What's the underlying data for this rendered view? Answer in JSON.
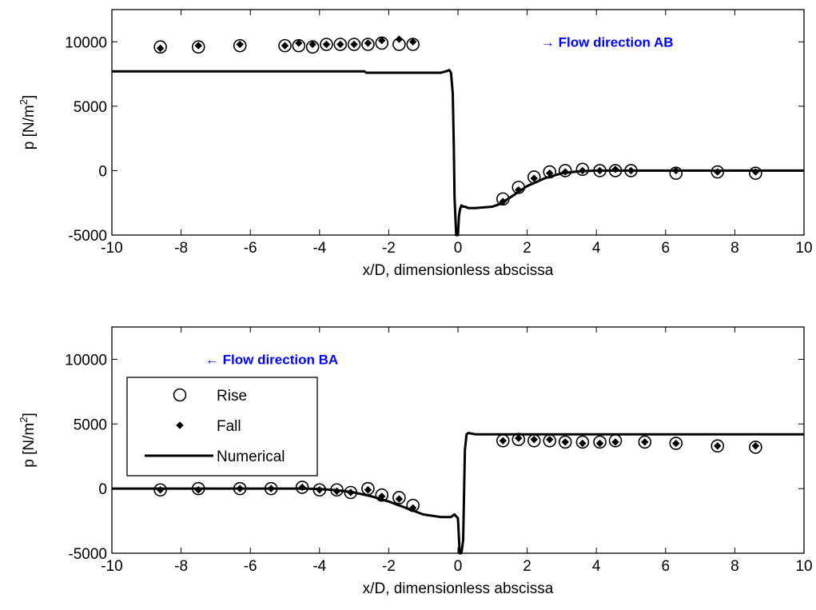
{
  "chart_data": [
    {
      "type": "scatter",
      "xlabel": "x/D, dimensionless abscissa",
      "ylabel": "p [N/m",
      "ylabel_sup": "2",
      "ylabel_close": "]",
      "xlim": [
        -10,
        10
      ],
      "ylim": [
        -5000,
        12500
      ],
      "xticks": [
        -10,
        -8,
        -6,
        -4,
        -2,
        0,
        2,
        4,
        6,
        8,
        10
      ],
      "yticks": [
        -5000,
        0,
        5000,
        10000
      ],
      "annotation": {
        "text": "→ Flow direction AB",
        "x": 2.4,
        "y": 10000,
        "color": "#0000ff"
      },
      "legend": null,
      "series": [
        {
          "name": "Rise",
          "marker": "circle",
          "x": [
            -8.6,
            -7.5,
            -6.3,
            -5.0,
            -4.6,
            -4.2,
            -3.8,
            -3.4,
            -3.0,
            -2.6,
            -2.2,
            -1.7,
            -1.3,
            1.3,
            1.75,
            2.2,
            2.65,
            3.1,
            3.6,
            4.1,
            4.55,
            5.0,
            6.3,
            7.5,
            8.6
          ],
          "y": [
            9600,
            9600,
            9700,
            9700,
            9700,
            9600,
            9800,
            9800,
            9800,
            9800,
            9900,
            9800,
            9800,
            -2200,
            -1300,
            -500,
            -100,
            0,
            100,
            0,
            0,
            0,
            -200,
            -100,
            -200
          ]
        },
        {
          "name": "Fall",
          "marker": "diamond",
          "x": [
            -8.6,
            -7.5,
            -6.3,
            -5.0,
            -4.6,
            -4.2,
            -3.8,
            -3.4,
            -3.0,
            -2.6,
            -2.2,
            -1.7,
            -1.3,
            1.3,
            1.75,
            2.2,
            2.65,
            3.1,
            3.6,
            4.1,
            4.55,
            5.0,
            6.3,
            7.5,
            8.6
          ],
          "y": [
            9500,
            9700,
            9800,
            9700,
            9900,
            9800,
            9800,
            9800,
            9800,
            9900,
            10100,
            10200,
            10000,
            -2400,
            -1500,
            -600,
            -200,
            -100,
            0,
            0,
            100,
            0,
            0,
            -100,
            -100
          ]
        },
        {
          "name": "Numerical",
          "marker": "line",
          "x": [
            -10,
            -2.7,
            -2.65,
            -0.5,
            -0.35,
            -0.25,
            -0.2,
            -0.15,
            -0.12,
            -0.1,
            -0.05,
            0,
            0.03,
            0.06,
            0.1,
            0.15,
            0.2,
            0.3,
            0.5,
            1.0,
            1.2,
            1.5,
            2.0,
            2.5,
            3.0,
            3.5,
            4.0,
            4.5,
            5.0,
            6.0,
            8.0,
            10.0
          ],
          "y": [
            7700,
            7700,
            7600,
            7600,
            7700,
            7800,
            7600,
            6000,
            2000,
            -2000,
            -5000,
            -5000,
            -3500,
            -3000,
            -2700,
            -2800,
            -2800,
            -2900,
            -2900,
            -2800,
            -2600,
            -2100,
            -1200,
            -600,
            -200,
            -50,
            0,
            0,
            0,
            0,
            0,
            0
          ]
        }
      ]
    },
    {
      "type": "scatter",
      "xlabel": "x/D, dimensionless abscissa",
      "ylabel": "p [N/m",
      "ylabel_sup": "2",
      "ylabel_close": "]",
      "xlim": [
        -10,
        10
      ],
      "ylim": [
        -5000,
        12500
      ],
      "xticks": [
        -10,
        -8,
        -6,
        -4,
        -2,
        0,
        2,
        4,
        6,
        8,
        10
      ],
      "yticks": [
        -5000,
        0,
        5000,
        10000
      ],
      "annotation": {
        "text": "← Flow direction BA",
        "x": -7.3,
        "y": 10000,
        "color": "#0000ff"
      },
      "legend": {
        "placement": "left",
        "entries": [
          "Rise",
          "Fall",
          "Numerical"
        ]
      },
      "series": [
        {
          "name": "Rise",
          "marker": "circle",
          "x": [
            -8.6,
            -7.5,
            -6.3,
            -5.4,
            -4.5,
            -4.0,
            -3.5,
            -3.1,
            -2.6,
            -2.2,
            -1.7,
            -1.3,
            1.3,
            1.75,
            2.2,
            2.65,
            3.1,
            3.6,
            4.1,
            4.55,
            5.4,
            6.3,
            7.5,
            8.6
          ],
          "y": [
            -100,
            0,
            0,
            0,
            100,
            -100,
            -100,
            -300,
            0,
            -500,
            -700,
            -1300,
            3700,
            3800,
            3700,
            3700,
            3600,
            3600,
            3600,
            3700,
            3600,
            3500,
            3300,
            3200
          ]
        },
        {
          "name": "Fall",
          "marker": "diamond",
          "x": [
            -8.6,
            -7.5,
            -6.3,
            -5.4,
            -4.5,
            -4.0,
            -3.5,
            -3.1,
            -2.6,
            -2.2,
            -1.7,
            -1.3,
            1.3,
            1.75,
            2.2,
            2.65,
            3.1,
            3.6,
            4.1,
            4.55,
            5.4,
            6.3,
            7.5,
            8.6
          ],
          "y": [
            -100,
            -100,
            0,
            0,
            100,
            -100,
            -200,
            -300,
            -100,
            -600,
            -800,
            -1500,
            3700,
            3900,
            3800,
            3800,
            3600,
            3500,
            3500,
            3600,
            3600,
            3500,
            3300,
            3300
          ]
        },
        {
          "name": "Numerical",
          "marker": "line",
          "x": [
            -10,
            -4.5,
            -4.0,
            -3.5,
            -3.0,
            -2.5,
            -2.0,
            -1.5,
            -1.0,
            -0.5,
            -0.2,
            -0.1,
            0.0,
            0.05,
            0.1,
            0.15,
            0.2,
            0.25,
            0.3,
            0.5,
            1.0,
            3.0,
            6.0,
            10.0
          ],
          "y": [
            0,
            0,
            -30,
            -120,
            -300,
            -600,
            -1000,
            -1500,
            -2000,
            -2200,
            -2200,
            -2000,
            -2300,
            -5000,
            -5000,
            -4000,
            3000,
            4200,
            4300,
            4200,
            4200,
            4200,
            4200,
            4200
          ]
        }
      ]
    }
  ]
}
